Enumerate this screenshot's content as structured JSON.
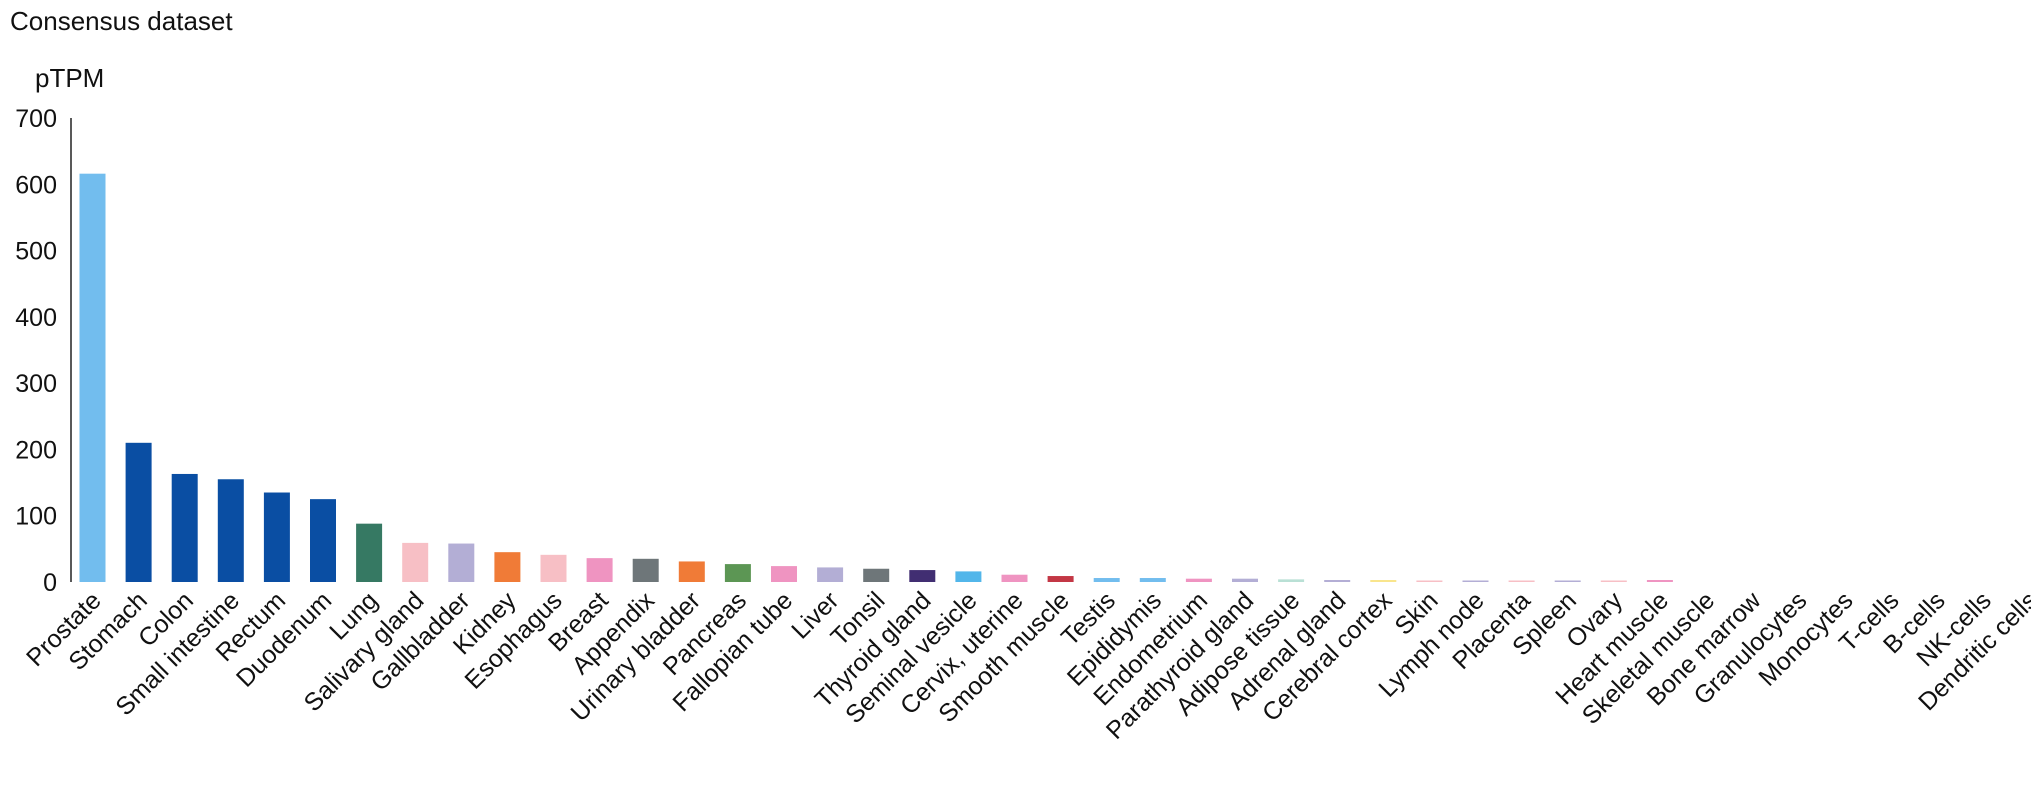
{
  "chart_data": {
    "type": "bar",
    "title": "Consensus dataset",
    "ylabel": "pTPM",
    "ylim": [
      0,
      700
    ],
    "yticks": [
      0,
      100,
      200,
      300,
      400,
      500,
      600,
      700
    ],
    "grid": false,
    "categories": [
      "Prostate",
      "Stomach",
      "Colon",
      "Small intestine",
      "Rectum",
      "Duodenum",
      "Lung",
      "Salivary gland",
      "Gallbladder",
      "Kidney",
      "Esophagus",
      "Breast",
      "Appendix",
      "Urinary bladder",
      "Pancreas",
      "Fallopian tube",
      "Liver",
      "Tonsil",
      "Thyroid gland",
      "Seminal vesicle",
      "Cervix, uterine",
      "Smooth muscle",
      "Testis",
      "Epididymis",
      "Endometrium",
      "Parathyroid gland",
      "Adipose tissue",
      "Adrenal gland",
      "Cerebral cortex",
      "Skin",
      "Lymph node",
      "Placenta",
      "Spleen",
      "Ovary",
      "Heart muscle",
      "Skeletal muscle",
      "Bone marrow",
      "Granulocytes",
      "Monocytes",
      "T-cells",
      "B-cells",
      "NK-cells",
      "Dendritic cells"
    ],
    "values": [
      616,
      210,
      163,
      155,
      135,
      125,
      88,
      59,
      58,
      45,
      41,
      36,
      35,
      31,
      27,
      24,
      22,
      20,
      18,
      16,
      11,
      9,
      6,
      6,
      5,
      5,
      4,
      3,
      3,
      2,
      2,
      2,
      2,
      2,
      3,
      0,
      0,
      0,
      0,
      0,
      0,
      0,
      0
    ],
    "colors": [
      "#72bdee",
      "#0a4ea3",
      "#0a4ea3",
      "#0a4ea3",
      "#0a4ea3",
      "#0a4ea3",
      "#367963",
      "#f7bfc5",
      "#b3aed5",
      "#f07b37",
      "#f7bfc5",
      "#ef94c1",
      "#6e7679",
      "#f07b37",
      "#5c9654",
      "#ef94c1",
      "#b3aed5",
      "#6e7679",
      "#412e72",
      "#52b6ea",
      "#ef94c1",
      "#c33745",
      "#72bdee",
      "#72bdee",
      "#ef94c1",
      "#b3aed5",
      "#b9e0d5",
      "#b3aed5",
      "#f9e58c",
      "#f7bfc5",
      "#b3aed5",
      "#f7bfc5",
      "#b3aed5",
      "#f7bfc5",
      "#ef94c1",
      "#c33745",
      "#c33745",
      "#c33745",
      "#c33745",
      "#c33745",
      "#c33745",
      "#c33745",
      "#c33745"
    ]
  }
}
